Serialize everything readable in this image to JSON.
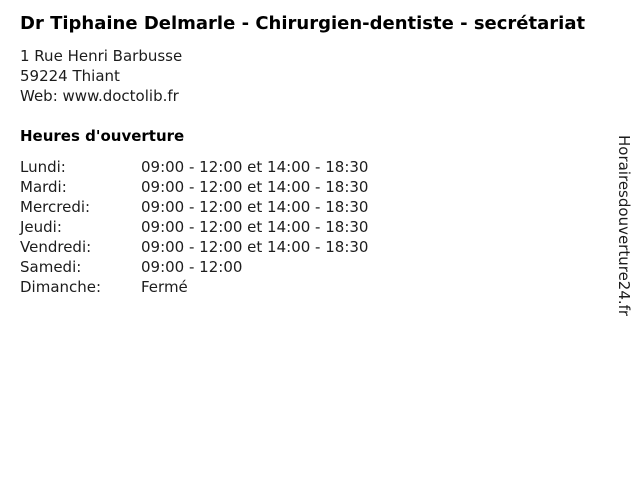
{
  "header": {
    "title": "Dr Tiphaine Delmarle - Chirurgien-dentiste - secrétariat"
  },
  "contact": {
    "address_line1": "1 Rue Henri Barbusse",
    "address_line2": "59224 Thiant",
    "web_label": "Web: ",
    "web_url": "www.doctolib.fr"
  },
  "hours": {
    "heading": "Heures d'ouverture",
    "rows": [
      {
        "day": "Lundi:",
        "time": "09:00 - 12:00 et 14:00 - 18:30"
      },
      {
        "day": "Mardi:",
        "time": "09:00 - 12:00 et 14:00 - 18:30"
      },
      {
        "day": "Mercredi:",
        "time": "09:00 - 12:00 et 14:00 - 18:30"
      },
      {
        "day": "Jeudi:",
        "time": "09:00 - 12:00 et 14:00 - 18:30"
      },
      {
        "day": "Vendredi:",
        "time": "09:00 - 12:00 et 14:00 - 18:30"
      },
      {
        "day": "Samedi:",
        "time": "09:00 - 12:00"
      },
      {
        "day": "Dimanche:",
        "time": "Fermé"
      }
    ]
  },
  "watermark": {
    "text": "Horairesdouverture24.fr"
  },
  "colors": {
    "text": "#000000",
    "background": "#ffffff"
  }
}
